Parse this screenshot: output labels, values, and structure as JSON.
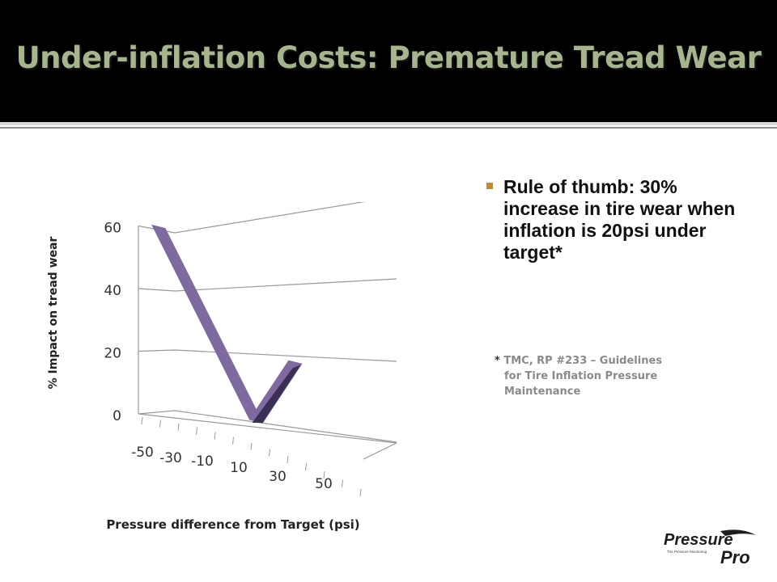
{
  "slide": {
    "title": "Under-inflation Costs: Premature Tread Wear",
    "bullet": "Rule of thumb: 30% increase in tire wear when inflation is 20psi under target*",
    "footnote_star": "*",
    "footnote_line1": "TMC, RP #233 – Guidelines",
    "footnote_line2": "for Tire Inflation Pressure",
    "footnote_line3": "Maintenance",
    "logo_text_top": "Pressure",
    "logo_text_bottom": "Pro",
    "logo_tagline": "Tire Pressure Monitoring"
  },
  "colors": {
    "header_bg": "#000000",
    "title": "#a7b58e",
    "series": "#7f6aa0",
    "series_dark": "#3b2f55",
    "bullet": "#c28a2e"
  },
  "chart_data": {
    "type": "line",
    "title": "",
    "xlabel": "Pressure difference from Target (psi)",
    "ylabel": "% Impact on tread wear",
    "x": [
      -50,
      -30,
      -10,
      10,
      30,
      50
    ],
    "x_tick_labels": [
      "-50",
      "-30",
      "-10",
      "10",
      "30",
      "50"
    ],
    "y_tick_labels": [
      "0",
      "20",
      "40",
      "60"
    ],
    "ylim": [
      0,
      60
    ],
    "grid": true,
    "style": "3d",
    "series": [
      {
        "x": [
          -50,
          0,
          20
        ],
        "values": [
          60,
          0,
          20
        ]
      }
    ]
  }
}
